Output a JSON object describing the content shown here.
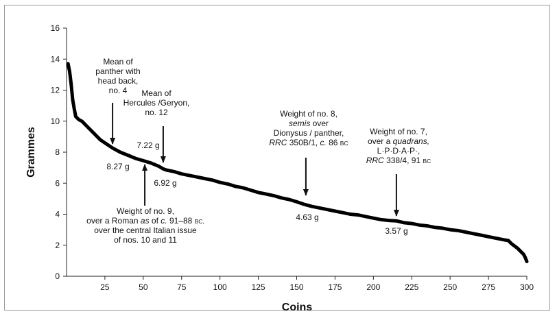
{
  "chart_data": {
    "type": "line",
    "title": "",
    "xlabel": "Coins",
    "ylabel": "Grammes",
    "xlim": [
      0,
      300
    ],
    "ylim": [
      0,
      16
    ],
    "xticks": [
      25,
      50,
      75,
      100,
      125,
      150,
      175,
      200,
      225,
      250,
      275,
      300
    ],
    "yticks": [
      0,
      2,
      4,
      6,
      8,
      10,
      12,
      14,
      16
    ],
    "grid": false,
    "legend": "none",
    "line_color": "#000000",
    "series": [
      {
        "x": [
          1,
          2,
          3,
          4,
          5,
          6,
          8,
          10,
          12,
          15,
          18,
          20,
          22,
          25,
          28,
          30,
          35,
          40,
          45,
          50,
          55,
          60,
          63,
          65,
          70,
          75,
          80,
          85,
          90,
          95,
          100,
          105,
          110,
          115,
          120,
          125,
          130,
          135,
          140,
          145,
          150,
          155,
          160,
          165,
          170,
          175,
          180,
          185,
          190,
          195,
          200,
          205,
          210,
          215,
          220,
          225,
          230,
          235,
          240,
          245,
          250,
          255,
          260,
          265,
          270,
          275,
          280,
          285,
          288,
          290,
          292,
          294,
          296,
          298,
          299,
          300
        ],
        "y": [
          13.7,
          13.2,
          12.4,
          11.4,
          10.8,
          10.3,
          10.1,
          10.0,
          9.8,
          9.5,
          9.2,
          9.0,
          8.8,
          8.6,
          8.4,
          8.27,
          8.0,
          7.8,
          7.6,
          7.45,
          7.3,
          7.1,
          6.92,
          6.85,
          6.75,
          6.6,
          6.5,
          6.4,
          6.3,
          6.2,
          6.05,
          5.95,
          5.8,
          5.7,
          5.55,
          5.4,
          5.3,
          5.2,
          5.05,
          4.95,
          4.8,
          4.63,
          4.5,
          4.4,
          4.3,
          4.2,
          4.1,
          4.0,
          3.95,
          3.85,
          3.75,
          3.65,
          3.6,
          3.57,
          3.45,
          3.4,
          3.3,
          3.25,
          3.15,
          3.1,
          3.0,
          2.95,
          2.85,
          2.75,
          2.65,
          2.55,
          2.45,
          2.35,
          2.3,
          2.1,
          1.95,
          1.8,
          1.6,
          1.4,
          1.2,
          0.95
        ]
      }
    ],
    "annotations": [
      {
        "lines": [
          "Mean of",
          "panther with",
          "head back,",
          "no. 4"
        ],
        "value": "8.27 g",
        "x": 30,
        "y": 8.27,
        "arrow": "down"
      },
      {
        "lines": [
          "Mean of",
          "Hercules /Geryon,",
          "no. 12"
        ],
        "value": "6.92 g",
        "x": 63,
        "y": 6.92,
        "arrow": "down"
      },
      {
        "lines": [
          "Weight of no. 9,",
          "over a Roman as of c. 91–88 BC,",
          "over the central Italian issue",
          "of nos. 10 and 11"
        ],
        "value": "7.22 g",
        "x": 51,
        "y": 7.22,
        "arrow": "up"
      },
      {
        "lines": [
          "Weight of no. 8,",
          "semis over",
          "Dionysus / panther,",
          "RRC 350B/1, c. 86 BC"
        ],
        "value": "4.63 g",
        "x": 156,
        "y": 4.63,
        "arrow": "down"
      },
      {
        "lines": [
          "Weight of no. 7,",
          "over a quadrans,",
          "L·P·D·A·P·,",
          "RRC 338/4, 91 BC"
        ],
        "value": "3.57 g",
        "x": 215,
        "y": 3.57,
        "arrow": "down"
      }
    ]
  }
}
